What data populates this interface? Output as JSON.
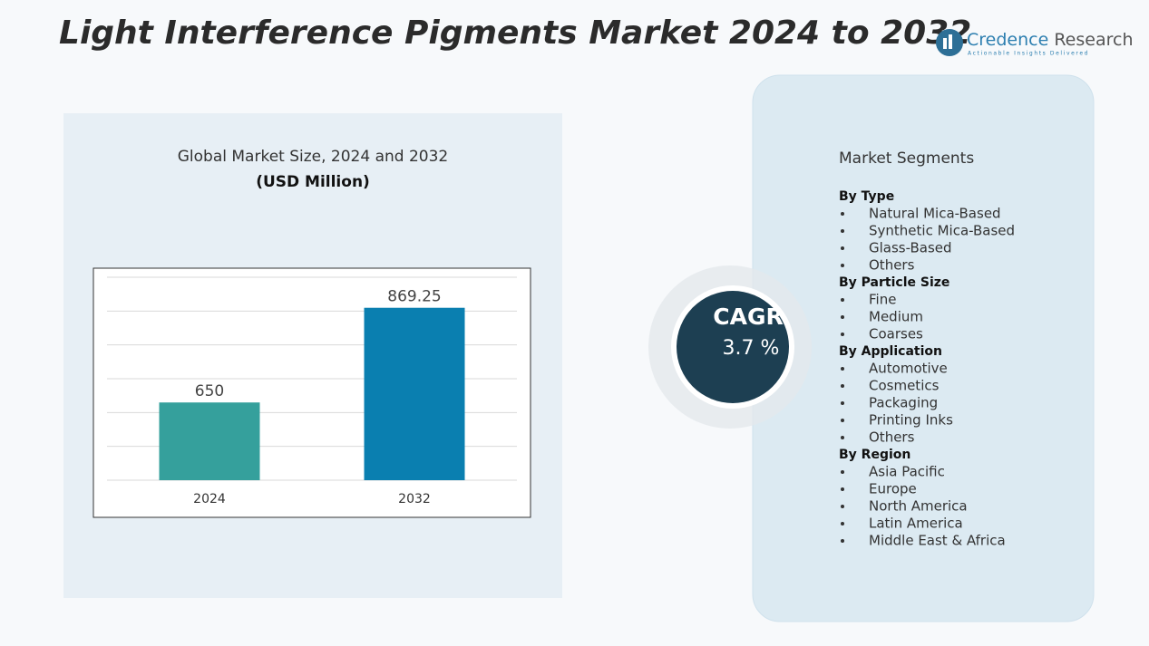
{
  "title": "Light Interference Pigments Market 2024 to 2032",
  "logo": {
    "name_first": "Credence",
    "name_second": "Research",
    "tagline": "Actionable Insights Delivered"
  },
  "chart_data": {
    "type": "bar",
    "title": "Global Market Size, 2024 and 2032",
    "subtitle": "(USD Million)",
    "categories": [
      "2024",
      "2032"
    ],
    "values": [
      650,
      869.25
    ],
    "colors": [
      "#35a09c",
      "#0a7fb0"
    ],
    "ylim": [
      470,
      940
    ],
    "grid": true
  },
  "cagr": {
    "label": "CAGR",
    "value": "3.7 %"
  },
  "segments": {
    "title": "Market Segments",
    "groups": [
      {
        "name": "By Type",
        "items": [
          "Natural Mica-Based",
          "Synthetic Mica-Based",
          "Glass-Based",
          "Others"
        ]
      },
      {
        "name": "By Particle Size",
        "items": [
          "Fine",
          "Medium",
          "Coarses"
        ]
      },
      {
        "name": "By Application",
        "items": [
          "Automotive",
          "Cosmetics",
          "Packaging",
          "Printing Inks",
          "Others"
        ]
      },
      {
        "name": "By Region",
        "items": [
          "Asia Pacific",
          "Europe",
          "North America",
          "Latin America",
          "Middle East & Africa"
        ]
      }
    ]
  }
}
